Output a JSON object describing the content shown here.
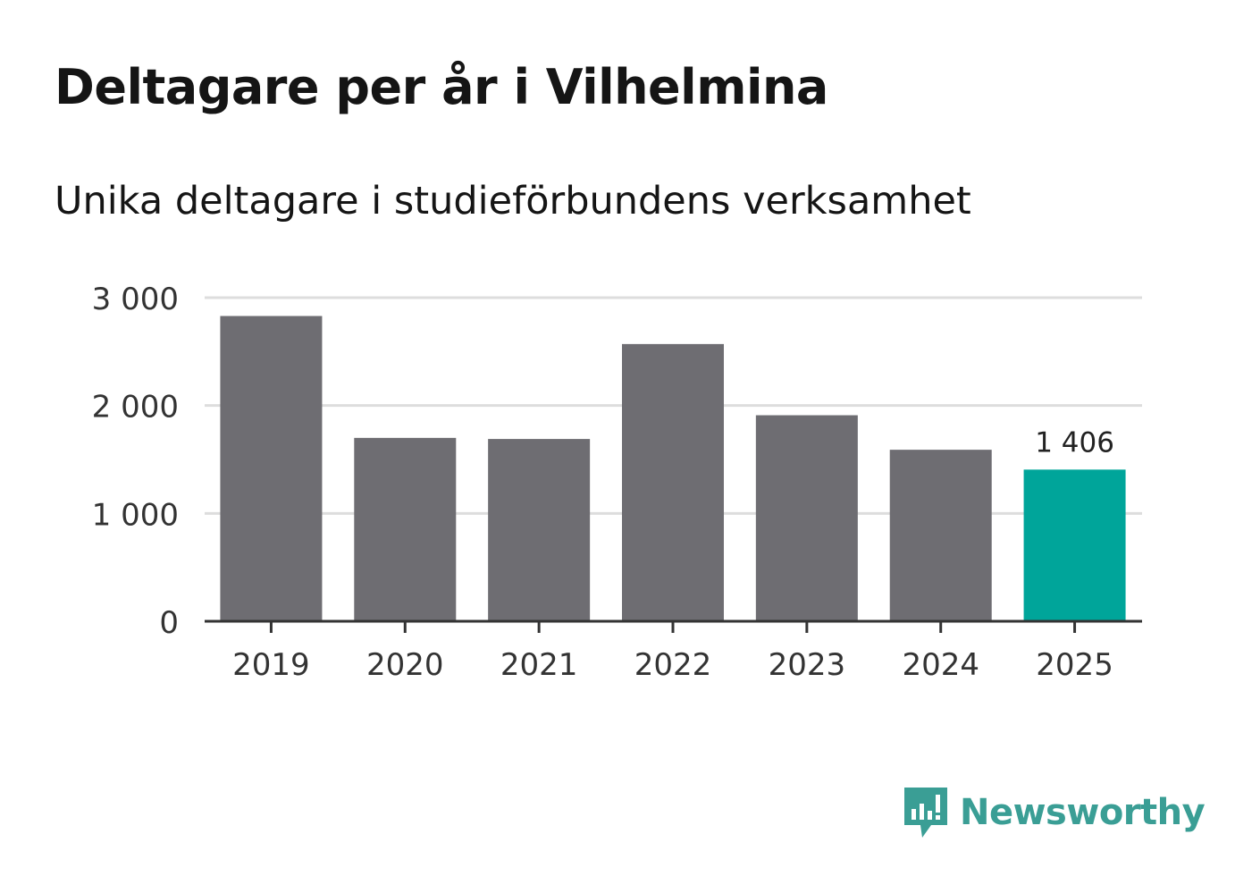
{
  "header": {
    "title": "Deltagare per år i Vilhelmina",
    "subtitle": "Unika deltagare i studieförbundens verksamhet"
  },
  "chart_data": {
    "type": "bar",
    "title": "Deltagare per år i Vilhelmina",
    "subtitle": "Unika deltagare i studieförbundens verksamhet",
    "categories": [
      "2019",
      "2020",
      "2021",
      "2022",
      "2023",
      "2024",
      "2025"
    ],
    "values": [
      2830,
      1700,
      1690,
      2570,
      1910,
      1590,
      1406
    ],
    "ylim": [
      0,
      3000
    ],
    "yticks": [
      0,
      1000,
      2000,
      3000
    ],
    "ytick_labels": [
      "0",
      "1 000",
      "2 000",
      "3 000"
    ],
    "xlabel": "",
    "ylabel": "",
    "grid": true,
    "highlight_index": 6,
    "highlight_label": "1 406",
    "bar_color": "#6e6d72",
    "highlight_color": "#00a59a",
    "grid_color": "#dddddd",
    "axis_color": "#333333"
  },
  "branding": {
    "logo_text": "Newsworthy",
    "logo_color": "#3a9e95"
  }
}
